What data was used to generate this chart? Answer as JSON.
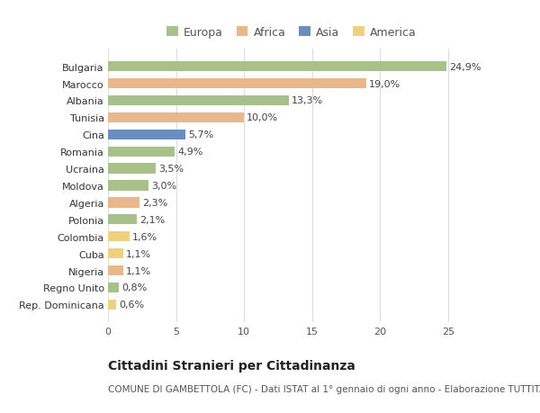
{
  "countries": [
    "Rep. Dominicana",
    "Regno Unito",
    "Nigeria",
    "Cuba",
    "Colombia",
    "Polonia",
    "Algeria",
    "Moldova",
    "Ucraina",
    "Romania",
    "Cina",
    "Tunisia",
    "Albania",
    "Marocco",
    "Bulgaria"
  ],
  "values": [
    0.6,
    0.8,
    1.1,
    1.1,
    1.6,
    2.1,
    2.3,
    3.0,
    3.5,
    4.9,
    5.7,
    10.0,
    13.3,
    19.0,
    24.9
  ],
  "continents": [
    "America",
    "Europa",
    "Africa",
    "America",
    "America",
    "Europa",
    "Africa",
    "Europa",
    "Europa",
    "Europa",
    "Asia",
    "Africa",
    "Europa",
    "Africa",
    "Europa"
  ],
  "continent_colors": {
    "Europa": "#a8c08a",
    "Africa": "#e8b88a",
    "Asia": "#6a8fbf",
    "America": "#f0d080"
  },
  "legend_order": [
    "Europa",
    "Africa",
    "Asia",
    "America"
  ],
  "title": "Cittadini Stranieri per Cittadinanza",
  "subtitle": "COMUNE DI GAMBETTOLA (FC) - Dati ISTAT al 1° gennaio di ogni anno - Elaborazione TUTTITALIA.IT",
  "xlim": [
    0,
    27
  ],
  "xticks": [
    0,
    5,
    10,
    15,
    20,
    25
  ],
  "background_color": "#ffffff",
  "grid_color": "#dddddd",
  "bar_height": 0.6,
  "label_fontsize": 8,
  "title_fontsize": 10,
  "subtitle_fontsize": 7.5,
  "tick_fontsize": 8,
  "legend_fontsize": 9
}
